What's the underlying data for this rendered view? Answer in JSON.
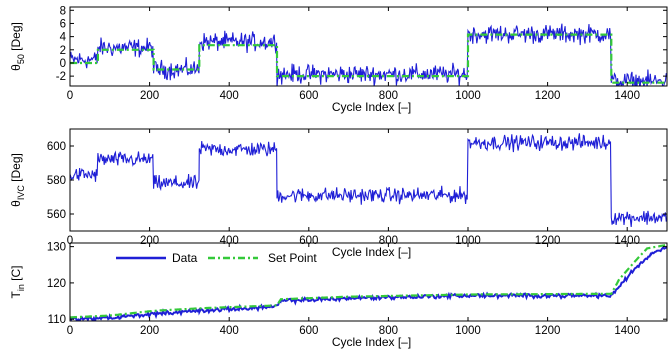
{
  "colors": {
    "data": "#1f1fd6",
    "setpoint": "#35c93a",
    "axes": "#000000",
    "background": "#ffffff"
  },
  "legend": {
    "items": [
      "Data",
      "Set Point"
    ],
    "placement": "top-left"
  },
  "chart_data": [
    {
      "type": "line",
      "ylabel": "θ50 [Deg]",
      "xlabel": "Cycle Index [–]",
      "xlim": [
        0,
        1500
      ],
      "ylim": [
        -3.5,
        8.5
      ],
      "xticks": [
        0,
        200,
        400,
        600,
        800,
        1000,
        1200,
        1400
      ],
      "yticks": [
        -2,
        0,
        2,
        4,
        6,
        8
      ],
      "grid": false,
      "series": [
        {
          "name": "Data",
          "noise": 0.7,
          "segments": [
            [
              0,
              70,
              0.5
            ],
            [
              70,
              210,
              2.3
            ],
            [
              210,
              325,
              -1.0
            ],
            [
              325,
              520,
              3.2
            ],
            [
              520,
              1000,
              -1.7
            ],
            [
              1000,
              1360,
              4.4
            ],
            [
              1360,
              1500,
              -2.8
            ]
          ]
        },
        {
          "name": "Set Point",
          "steps": [
            [
              0,
              70,
              0
            ],
            [
              70,
              210,
              2
            ],
            [
              210,
              325,
              -1
            ],
            [
              325,
              520,
              2.7
            ],
            [
              520,
              1000,
              -2
            ],
            [
              1000,
              1360,
              4.3
            ],
            [
              1360,
              1500,
              -3
            ]
          ]
        }
      ]
    },
    {
      "type": "line",
      "ylabel": "θIVC [Deg]",
      "xlabel": "Cycle Index [–]",
      "xlim": [
        0,
        1500
      ],
      "ylim": [
        550,
        610
      ],
      "xticks": [
        0,
        200,
        400,
        600,
        800,
        1000,
        1200,
        1400
      ],
      "yticks": [
        560,
        580,
        600
      ],
      "grid": false,
      "series": [
        {
          "name": "Data",
          "noise": 2.2,
          "segments": [
            [
              0,
              70,
              583
            ],
            [
              70,
              210,
              592
            ],
            [
              210,
              325,
              578
            ],
            [
              325,
              520,
              598
            ],
            [
              520,
              1000,
              571
            ],
            [
              1000,
              1360,
              602
            ],
            [
              1360,
              1500,
              558
            ]
          ]
        }
      ]
    },
    {
      "type": "line",
      "ylabel": "Tin [C]",
      "xlabel": "Cycle Index [–]",
      "xlim": [
        0,
        1500
      ],
      "ylim": [
        109.5,
        131
      ],
      "xticks": [
        0,
        200,
        400,
        600,
        800,
        1000,
        1200,
        1400
      ],
      "yticks": [
        110,
        120,
        130
      ],
      "grid": false,
      "series": [
        {
          "name": "Data",
          "noise": 0.35,
          "points": [
            [
              0,
              110
            ],
            [
              100,
              110.3
            ],
            [
              210,
              111.5
            ],
            [
              325,
              112.3
            ],
            [
              520,
              113.5
            ],
            [
              530,
              115
            ],
            [
              700,
              115.8
            ],
            [
              1000,
              116.5
            ],
            [
              1360,
              116.5
            ],
            [
              1380,
              119
            ],
            [
              1420,
              124
            ],
            [
              1460,
              128
            ],
            [
              1500,
              130
            ]
          ]
        },
        {
          "name": "Set Point",
          "points": [
            [
              0,
              110.5
            ],
            [
              100,
              111
            ],
            [
              210,
              112.3
            ],
            [
              325,
              113
            ],
            [
              520,
              113.8
            ],
            [
              530,
              115.5
            ],
            [
              700,
              116.2
            ],
            [
              1000,
              116.8
            ],
            [
              1360,
              117
            ],
            [
              1380,
              121
            ],
            [
              1420,
              126
            ],
            [
              1450,
              129.5
            ],
            [
              1500,
              130.5
            ]
          ]
        }
      ]
    }
  ]
}
